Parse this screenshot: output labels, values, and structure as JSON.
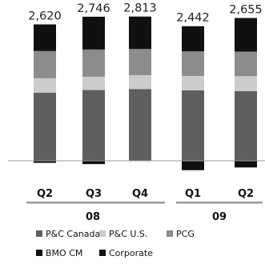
{
  "chart_data": {
    "type": "bar",
    "stacked": true,
    "categories": [
      "Q2",
      "Q3",
      "Q4",
      "Q1",
      "Q2"
    ],
    "category_groups": [
      {
        "label": "08",
        "categories": [
          0,
          1,
          2
        ]
      },
      {
        "label": "09",
        "categories": [
          3,
          4
        ]
      }
    ],
    "totals": [
      "2,620",
      "2,746",
      "2,813",
      "2,442",
      "2,655"
    ],
    "series": [
      {
        "name": "P&C Canada",
        "color": "#5f5f5f",
        "values": [
          1330,
          1380,
          1400,
          1375,
          1360
        ]
      },
      {
        "name": "P&C U.S.",
        "color": "#cccccc",
        "values": [
          280,
          260,
          270,
          280,
          290
        ]
      },
      {
        "name": "PCG",
        "color": "#8c8c8c",
        "values": [
          530,
          530,
          510,
          480,
          480
        ]
      },
      {
        "name": "BMO CM",
        "color": "#101010",
        "values": [
          520,
          640,
          633,
          490,
          655
        ]
      },
      {
        "name": "Corporate",
        "color": "#101010",
        "values": [
          -40,
          -64,
          0,
          -183,
          -130
        ]
      }
    ],
    "legend": {
      "placement": "bottom"
    },
    "grid": false
  }
}
